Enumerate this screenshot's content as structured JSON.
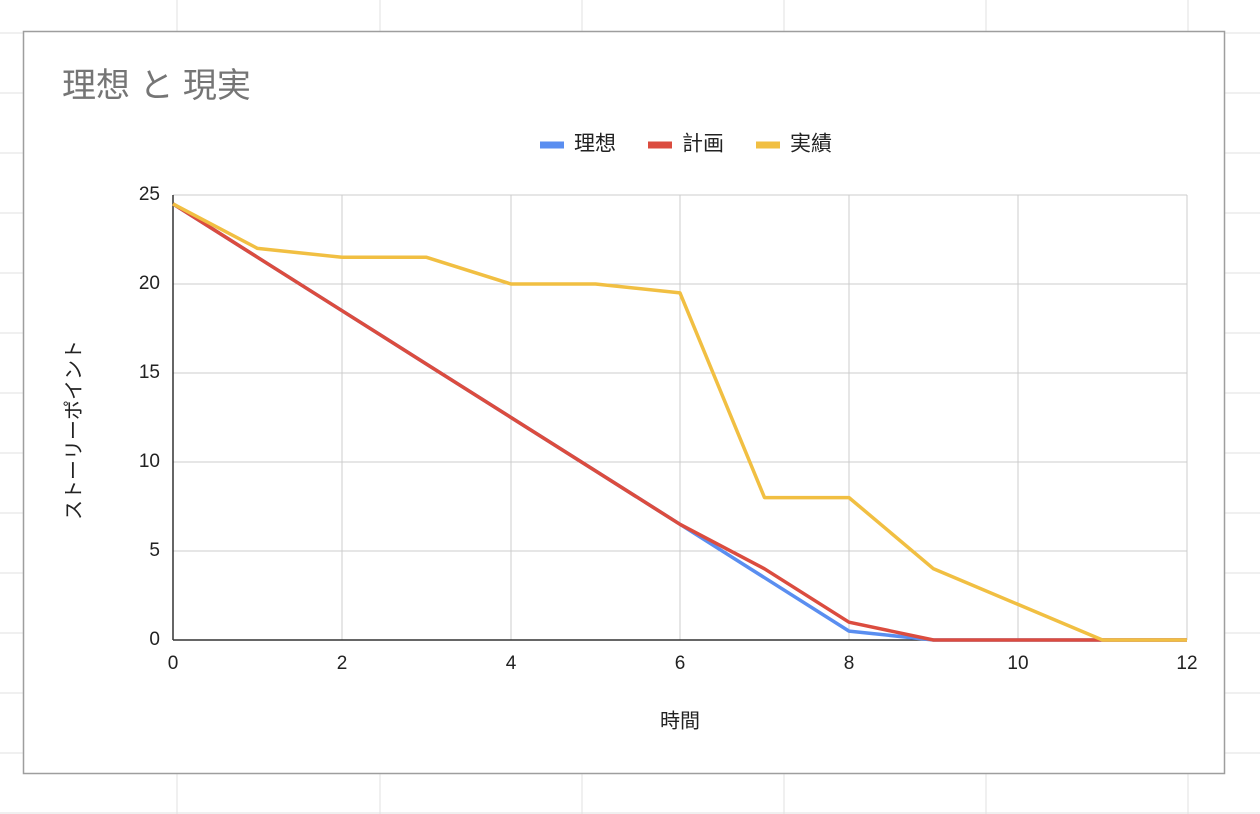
{
  "chart_data": {
    "type": "line",
    "title": "理想 と 現実",
    "x": [
      0,
      1,
      2,
      3,
      4,
      5,
      6,
      7,
      8,
      9,
      10,
      11,
      12
    ],
    "series": [
      {
        "name": "理想",
        "color": "#5a8ef0",
        "values": [
          24.5,
          21.5,
          18.5,
          15.5,
          12.5,
          9.5,
          6.5,
          3.5,
          0.5,
          0,
          0,
          0,
          0
        ]
      },
      {
        "name": "計画",
        "color": "#db4c3f",
        "values": [
          24.5,
          21.5,
          18.5,
          15.5,
          12.5,
          9.5,
          6.5,
          4,
          1,
          0,
          0,
          0,
          0
        ]
      },
      {
        "name": "実績",
        "color": "#f1bf42",
        "values": [
          24.5,
          22,
          21.5,
          21.5,
          20,
          20,
          19.5,
          8,
          8,
          4,
          2,
          0,
          0
        ]
      }
    ],
    "xlim": [
      0,
      12
    ],
    "xticks": [
      0,
      2,
      4,
      6,
      8,
      10,
      12
    ],
    "ylim": [
      0,
      25
    ],
    "yticks": [
      0,
      5,
      10,
      15,
      20,
      25
    ],
    "xlabel": "時間",
    "ylabel": "ストーリーポイント",
    "grid": true,
    "legend": "top"
  }
}
